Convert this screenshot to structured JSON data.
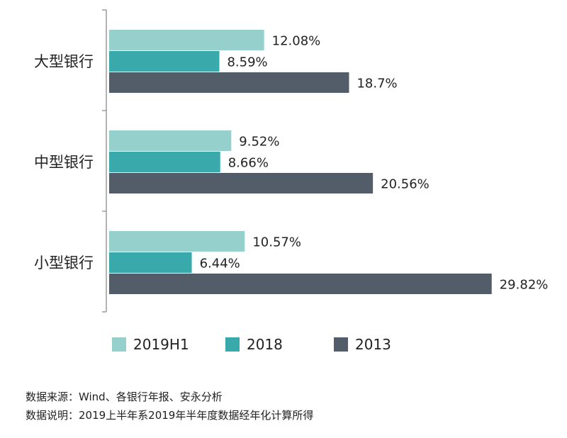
{
  "chart_data": {
    "type": "bar",
    "orientation": "horizontal",
    "categories": [
      "大型银行",
      "中型银行",
      "小型银行"
    ],
    "series": [
      {
        "name": "2019H1",
        "values": [
          12.08,
          9.52,
          10.57
        ],
        "labels": [
          "12.08%",
          "9.52%",
          "10.57%"
        ],
        "color": "#96d0cd"
      },
      {
        "name": "2018",
        "values": [
          8.59,
          8.66,
          6.44
        ],
        "labels": [
          "8.59%",
          "8.66%",
          "6.44%"
        ],
        "color": "#3aa9ab"
      },
      {
        "name": "2013",
        "values": [
          18.7,
          20.56,
          29.82
        ],
        "labels": [
          "18.7%",
          "20.56%",
          "29.82%"
        ],
        "color": "#535d69"
      }
    ],
    "xlim": [
      0,
      30
    ],
    "grid": false,
    "legend_position": "bottom"
  },
  "notes": {
    "source": "数据来源：Wind、各银行年报、安永分析",
    "explanation": "数据说明：2019上半年系2019年半年度数据经年化计算所得"
  }
}
